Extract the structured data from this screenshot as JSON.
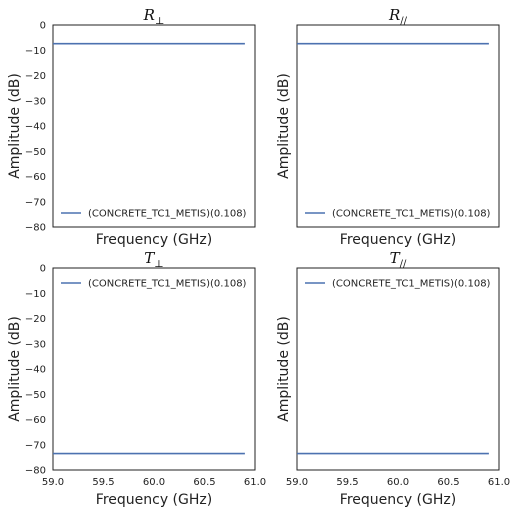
{
  "chart_data": [
    {
      "type": "line",
      "title_main": "R",
      "title_sub": "⊥",
      "xlabel": "Frequency (GHz)",
      "ylabel": "Amplitude (dB)",
      "xlim": [
        59.0,
        61.0
      ],
      "ylim": [
        -80,
        0
      ],
      "xticks": [],
      "yticks": [
        "0",
        "−10",
        "−20",
        "−30",
        "−40",
        "−50",
        "−60",
        "−70",
        "−80"
      ],
      "legend_position": "lower-left",
      "series": [
        {
          "name": "(CONCRETE_TC1_METIS)(0.108)",
          "color": "#4c72b0",
          "x": [
            59.0,
            60.9
          ],
          "y": [
            -7.4,
            -7.4
          ]
        }
      ]
    },
    {
      "type": "line",
      "title_main": "R",
      "title_sub": "//",
      "xlabel": "Frequency (GHz)",
      "ylabel": "Amplitude (dB)",
      "xlim": [
        59.0,
        61.0
      ],
      "ylim": [
        -80,
        0
      ],
      "xticks": [],
      "yticks": [],
      "legend_position": "lower-left",
      "series": [
        {
          "name": "(CONCRETE_TC1_METIS)(0.108)",
          "color": "#4c72b0",
          "x": [
            59.0,
            60.9
          ],
          "y": [
            -7.4,
            -7.4
          ]
        }
      ]
    },
    {
      "type": "line",
      "title_main": "T",
      "title_sub": "⊥",
      "xlabel": "Frequency (GHz)",
      "ylabel": "Amplitude (dB)",
      "xlim": [
        59.0,
        61.0
      ],
      "ylim": [
        -80,
        0
      ],
      "xticks": [
        "59.0",
        "59.5",
        "60.0",
        "60.5",
        "61.0"
      ],
      "yticks": [
        "0",
        "−10",
        "−20",
        "−30",
        "−40",
        "−50",
        "−60",
        "−70",
        "−80"
      ],
      "legend_position": "upper-left",
      "series": [
        {
          "name": "(CONCRETE_TC1_METIS)(0.108)",
          "color": "#4c72b0",
          "x": [
            59.0,
            60.9
          ],
          "y": [
            -73.5,
            -73.5
          ]
        }
      ]
    },
    {
      "type": "line",
      "title_main": "T",
      "title_sub": "//",
      "xlabel": "Frequency (GHz)",
      "ylabel": "Amplitude (dB)",
      "xlim": [
        59.0,
        61.0
      ],
      "ylim": [
        -80,
        0
      ],
      "xticks": [
        "59.0",
        "59.5",
        "60.0",
        "60.5",
        "61.0"
      ],
      "yticks": [],
      "legend_position": "upper-left",
      "series": [
        {
          "name": "(CONCRETE_TC1_METIS)(0.108)",
          "color": "#4c72b0",
          "x": [
            59.0,
            60.9
          ],
          "y": [
            -73.5,
            -73.5
          ]
        }
      ]
    }
  ]
}
